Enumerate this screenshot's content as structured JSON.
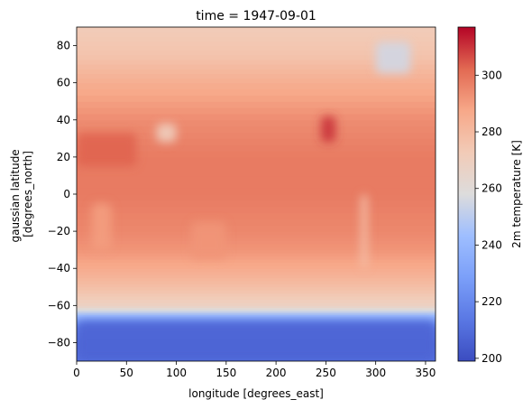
{
  "chart_data": {
    "type": "heatmap",
    "title": "time = 1947-09-01",
    "xlabel": "longitude [degrees_east]",
    "ylabel_lines": [
      "gaussian latitude",
      "[degrees_north]"
    ],
    "xlim": [
      0,
      360
    ],
    "ylim": [
      -90,
      90
    ],
    "xticks": [
      0,
      50,
      100,
      150,
      200,
      250,
      300,
      350
    ],
    "yticks": [
      -80,
      -60,
      -40,
      -20,
      0,
      20,
      40,
      60,
      80
    ],
    "colorbar": {
      "label": "2m temperature [K]",
      "range": [
        199,
        317
      ],
      "ticks": [
        200,
        220,
        240,
        260,
        280,
        300
      ],
      "colormap": "coolwarm"
    },
    "grid": false,
    "latitude_profile_K": [
      {
        "lat": -90,
        "value": 212
      },
      {
        "lat": -80,
        "value": 210
      },
      {
        "lat": -72,
        "value": 218
      },
      {
        "lat": -66,
        "value": 240
      },
      {
        "lat": -60,
        "value": 268
      },
      {
        "lat": -50,
        "value": 278
      },
      {
        "lat": -40,
        "value": 286
      },
      {
        "lat": -30,
        "value": 292
      },
      {
        "lat": -20,
        "value": 295
      },
      {
        "lat": 0,
        "value": 298
      },
      {
        "lat": 20,
        "value": 298
      },
      {
        "lat": 40,
        "value": 294
      },
      {
        "lat": 60,
        "value": 285
      },
      {
        "lat": 75,
        "value": 276
      },
      {
        "lat": 90,
        "value": 272
      }
    ],
    "regions_K": [
      {
        "region": "Antarctica",
        "lat": [
          -90,
          -68
        ],
        "lon": [
          0,
          360
        ],
        "value": 207
      },
      {
        "region": "Greenland",
        "lat": [
          65,
          82
        ],
        "lon": [
          300,
          335
        ],
        "value": 255
      },
      {
        "region": "Tibetan Plateau",
        "lat": [
          28,
          38
        ],
        "lon": [
          80,
          100
        ],
        "value": 270
      },
      {
        "region": "North Africa / Arabia",
        "lat": [
          15,
          33
        ],
        "lon": [
          0,
          60
        ],
        "value": 303
      },
      {
        "region": "Southwest North America",
        "lat": [
          28,
          42
        ],
        "lon": [
          245,
          260
        ],
        "value": 310
      },
      {
        "region": "Andes",
        "lat": [
          -40,
          0
        ],
        "lon": [
          285,
          292
        ],
        "value": 278
      },
      {
        "region": "Southern Africa",
        "lat": [
          -30,
          -5
        ],
        "lon": [
          15,
          35
        ],
        "value": 290
      },
      {
        "region": "Australia",
        "lat": [
          -35,
          -15
        ],
        "lon": [
          115,
          150
        ],
        "value": 292
      }
    ]
  }
}
